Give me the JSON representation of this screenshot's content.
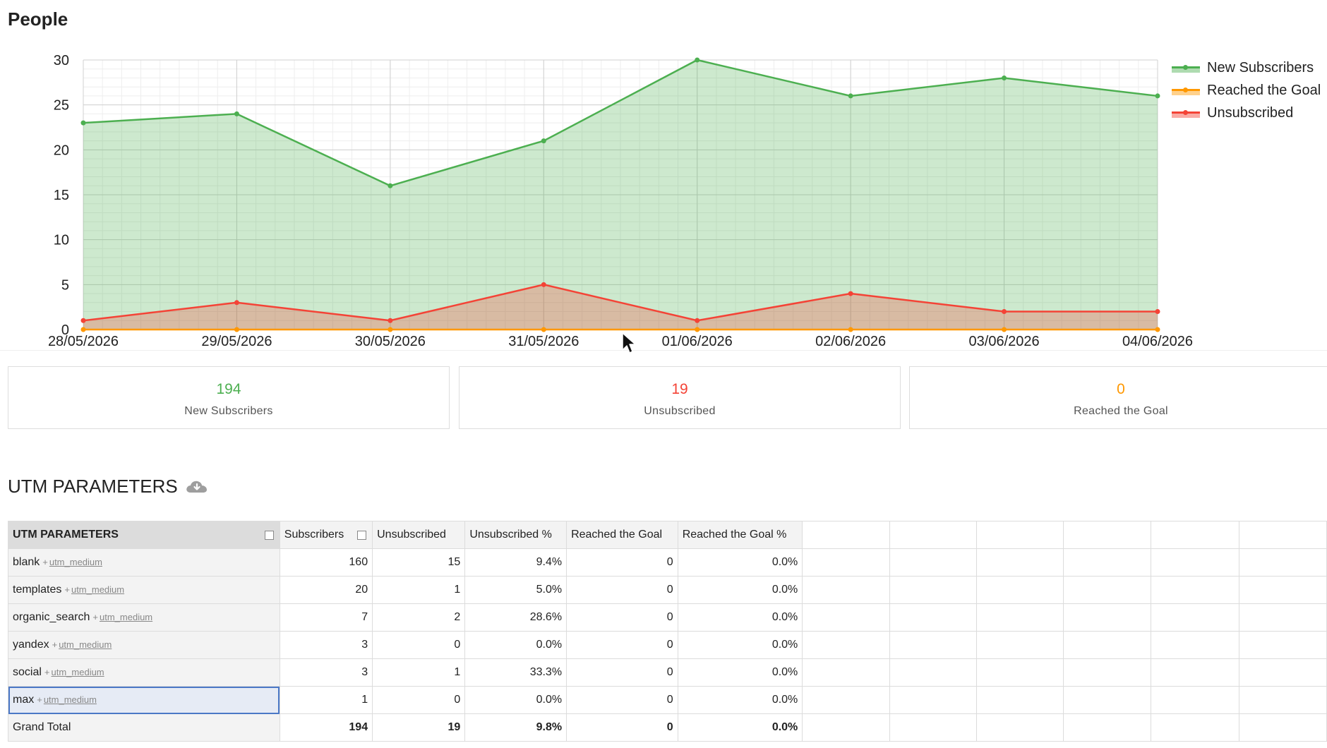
{
  "page_title": "People",
  "colors": {
    "new_subscribers": "#4caf50",
    "reached_goal": "#ff9800",
    "unsubscribed": "#f44336"
  },
  "chart_data": {
    "type": "area",
    "x": [
      "28/05/2026",
      "29/05/2026",
      "30/05/2026",
      "31/05/2026",
      "01/06/2026",
      "02/06/2026",
      "03/06/2026",
      "04/06/2026"
    ],
    "series": [
      {
        "name": "New Subscribers",
        "values": [
          23,
          24,
          16,
          21,
          30,
          26,
          28,
          26
        ],
        "color": "#4caf50"
      },
      {
        "name": "Reached the Goal",
        "values": [
          0,
          0,
          0,
          0,
          0,
          0,
          0,
          0
        ],
        "color": "#ff9800"
      },
      {
        "name": "Unsubscribed",
        "values": [
          1,
          3,
          1,
          5,
          1,
          4,
          2,
          2
        ],
        "color": "#f44336"
      }
    ],
    "ylim": [
      0,
      30
    ],
    "yticks": [
      0,
      5,
      10,
      15,
      20,
      25,
      30
    ],
    "grid": true,
    "legend": "top-right"
  },
  "stats": [
    {
      "value": "194",
      "label": "New Subscribers",
      "color": "#4caf50"
    },
    {
      "value": "19",
      "label": "Unsubscribed",
      "color": "#f44336"
    },
    {
      "value": "0",
      "label": "Reached the Goal",
      "color": "#ff9800"
    }
  ],
  "utm": {
    "heading": "UTM PARAMETERS",
    "columns": [
      "UTM PARAMETERS",
      "Subscribers",
      "Unsubscribed",
      "Unsubscribed %",
      "Reached the Goal",
      "Reached the Goal %"
    ],
    "sub_tag": "utm_medium",
    "rows": [
      {
        "name": "blank",
        "subscribers": "160",
        "unsubscribed": "15",
        "unsub_pct": "9.4%",
        "reached": "0",
        "reached_pct": "0.0%"
      },
      {
        "name": "templates",
        "subscribers": "20",
        "unsubscribed": "1",
        "unsub_pct": "5.0%",
        "reached": "0",
        "reached_pct": "0.0%"
      },
      {
        "name": "organic_search",
        "subscribers": "7",
        "unsubscribed": "2",
        "unsub_pct": "28.6%",
        "reached": "0",
        "reached_pct": "0.0%"
      },
      {
        "name": "yandex",
        "subscribers": "3",
        "unsubscribed": "0",
        "unsub_pct": "0.0%",
        "reached": "0",
        "reached_pct": "0.0%"
      },
      {
        "name": "social",
        "subscribers": "3",
        "unsubscribed": "1",
        "unsub_pct": "33.3%",
        "reached": "0",
        "reached_pct": "0.0%"
      },
      {
        "name": "max",
        "subscribers": "1",
        "unsubscribed": "0",
        "unsub_pct": "0.0%",
        "reached": "0",
        "reached_pct": "0.0%",
        "selected": true
      }
    ],
    "total": {
      "name": "Grand Total",
      "subscribers": "194",
      "unsubscribed": "19",
      "unsub_pct": "9.8%",
      "reached": "0",
      "reached_pct": "0.0%"
    }
  }
}
